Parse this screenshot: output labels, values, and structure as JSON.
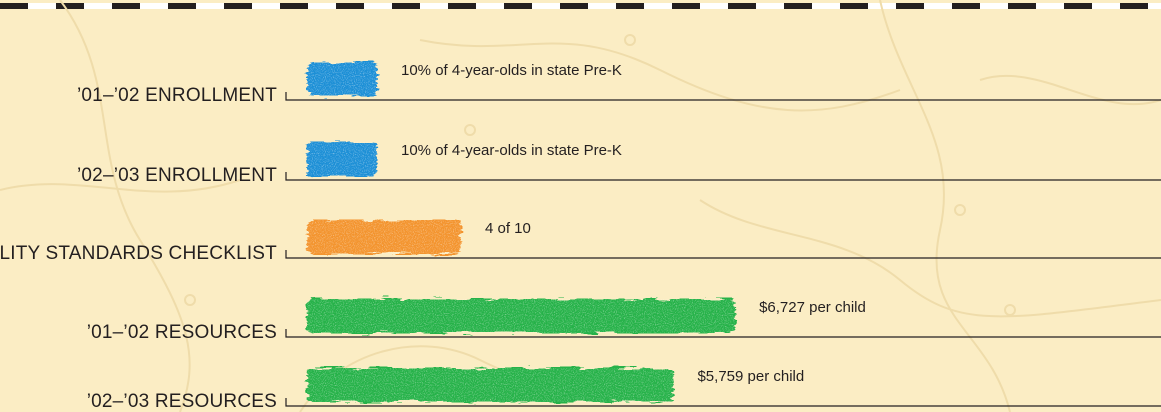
{
  "chart_data": {
    "type": "bar",
    "orientation": "horizontal",
    "title": "",
    "xlabel": "",
    "ylabel": "",
    "categories": [
      "’01–’02 ENROLLMENT",
      "’02–’03 ENROLLMENT",
      "QUALITY STANDARDS CHECKLIST",
      "’01–’02 RESOURCES",
      "’02–’03 RESOURCES"
    ],
    "values": [
      10,
      10,
      4,
      6727,
      5759
    ],
    "units": [
      "percent",
      "percent",
      "of 10",
      "dollars per child",
      "dollars per child"
    ],
    "data_labels": [
      "10% of 4-year-olds in state Pre-K",
      "10% of 4-year-olds in state Pre-K",
      "4 of 10",
      "$6,727 per child",
      "$5,759 per child"
    ],
    "colors": [
      "#1b8fd6",
      "#1b8fd6",
      "#f3942d",
      "#27b24a",
      "#27b24a"
    ],
    "scales": {
      "enrollment_percent_max": 100,
      "quality_max": 10,
      "resources_dollars_max": 11000
    },
    "grid": false,
    "legend": "none"
  },
  "background": {
    "fill": "#fbedc4",
    "map_texture_color": "#efdcaa"
  },
  "border_colors": [
    "#231f20",
    "#ffffff"
  ]
}
